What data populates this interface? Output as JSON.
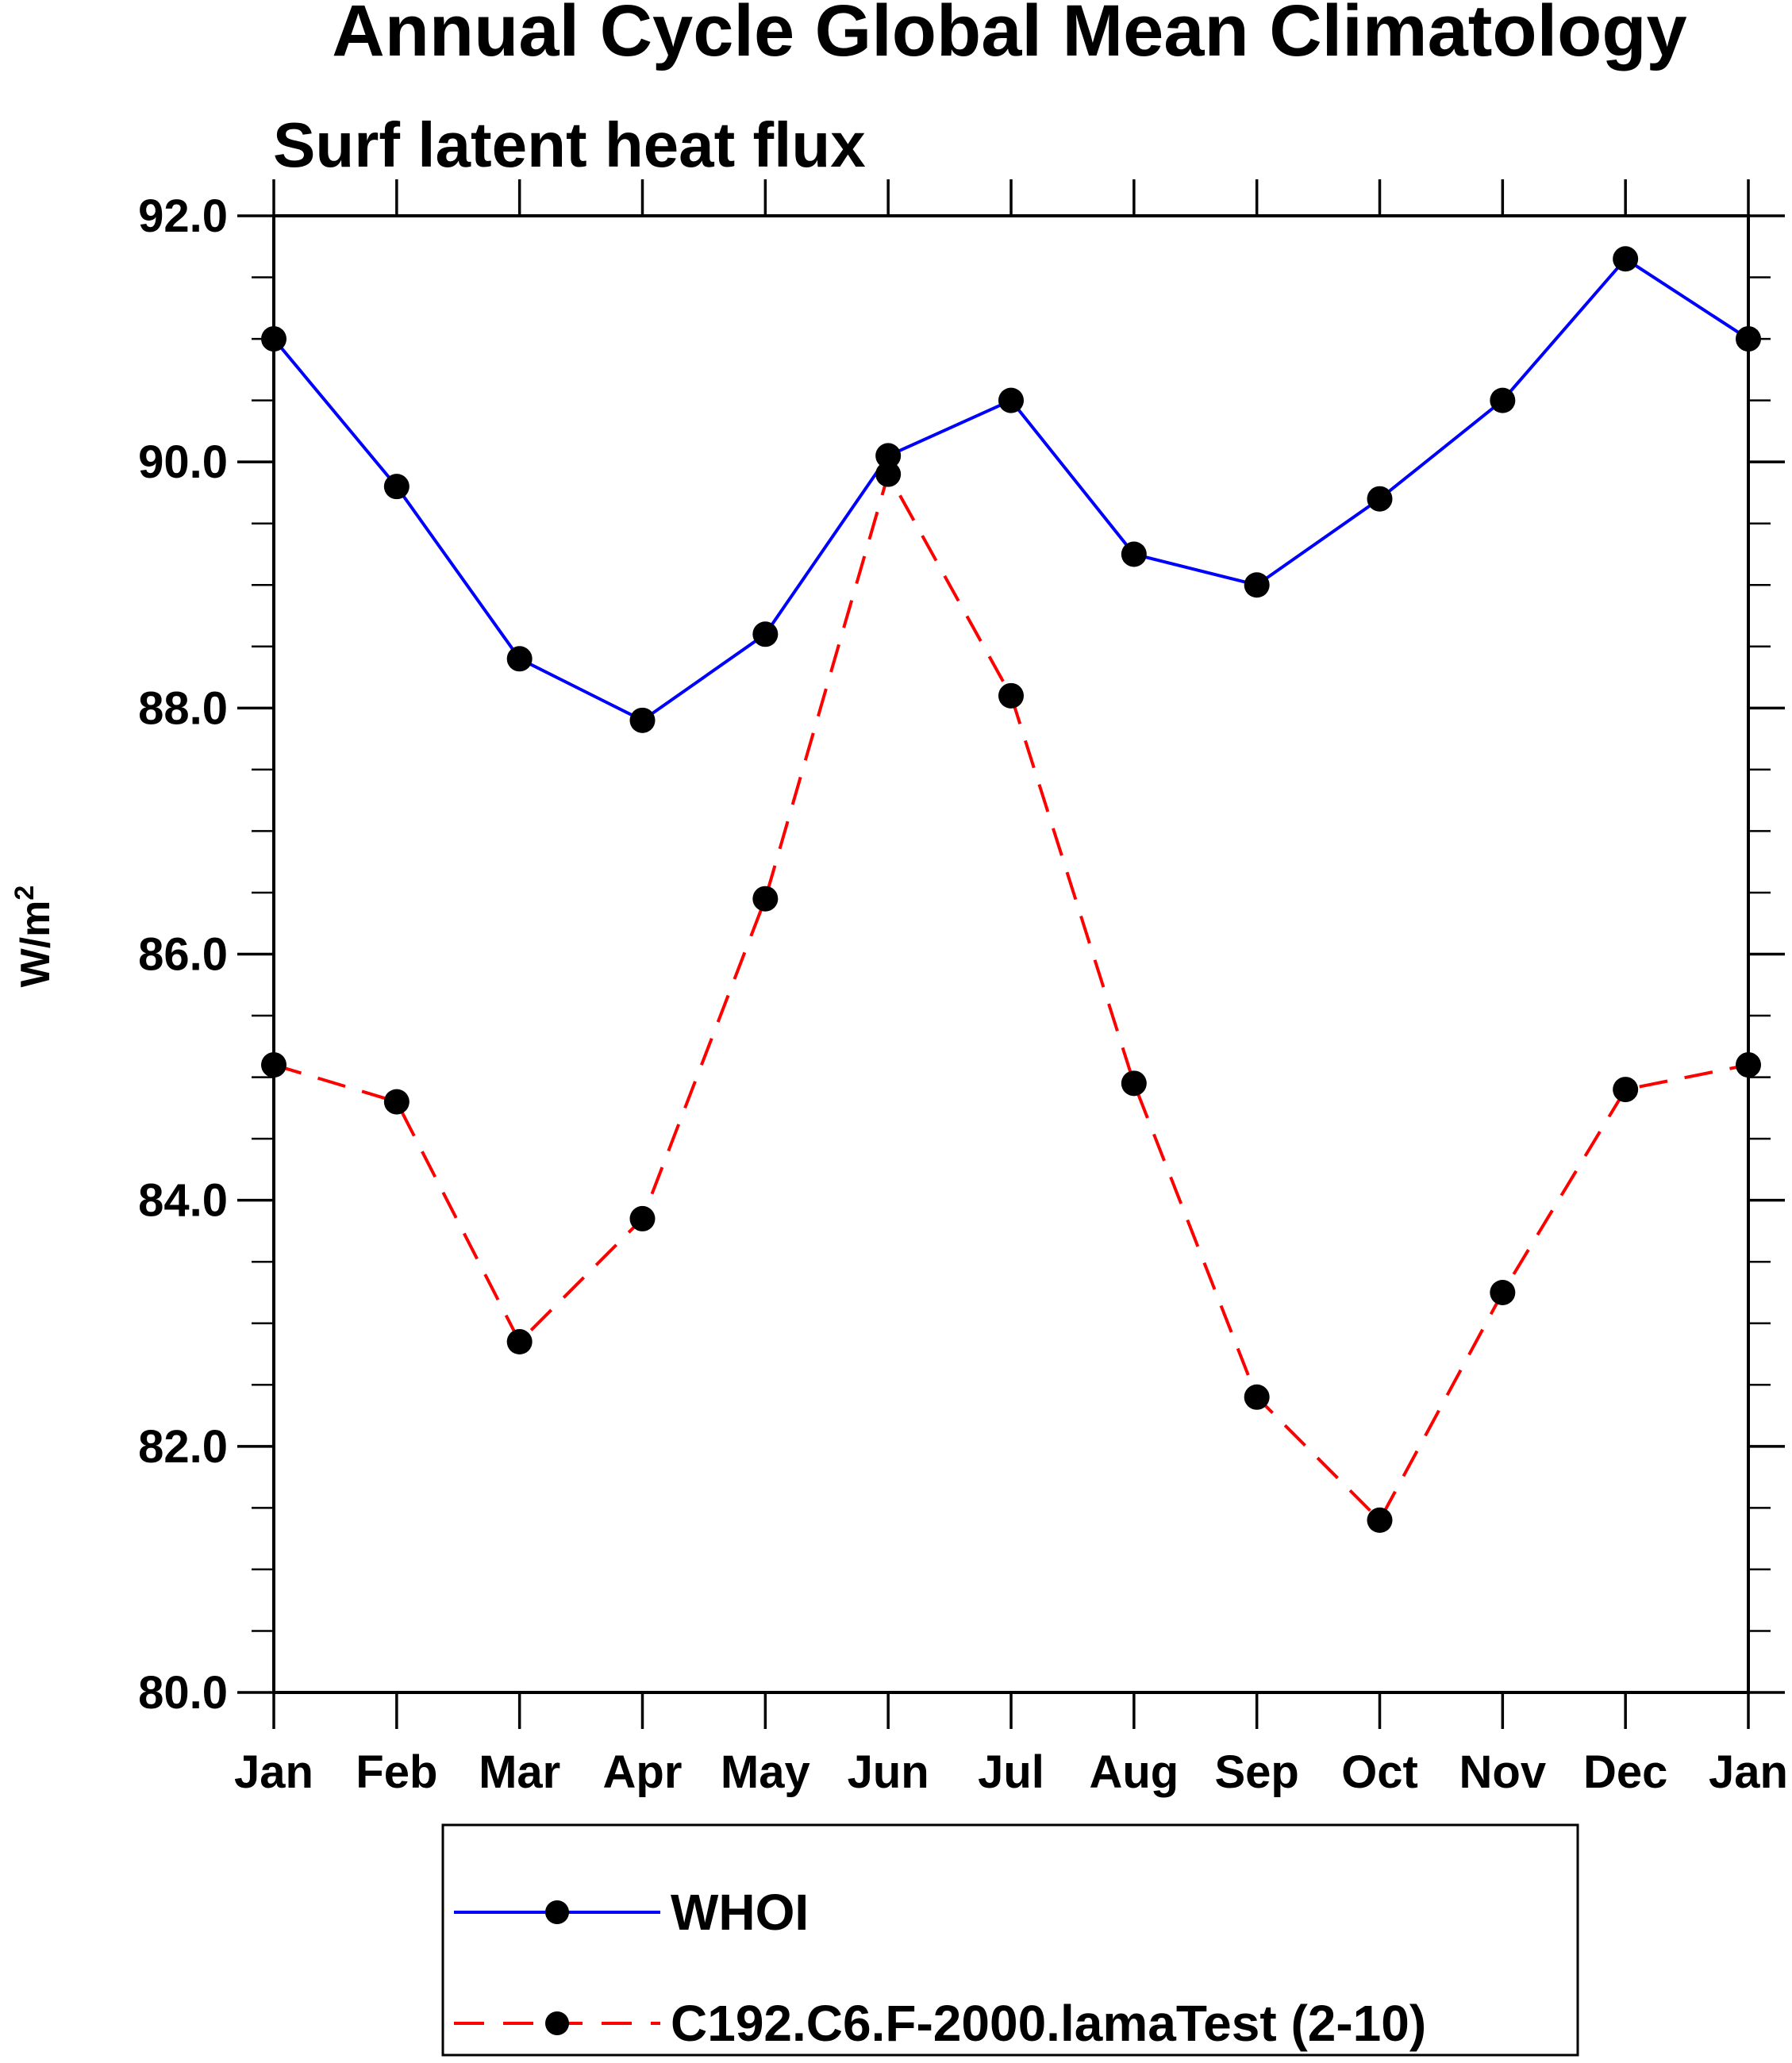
{
  "chart_data": {
    "type": "line",
    "title": "Annual Cycle Global Mean Climatology",
    "subtitle": "Surf latent heat flux",
    "xlabel": "",
    "ylabel": "W/m",
    "ylabel_superscript": "2",
    "categories": [
      "Jan",
      "Feb",
      "Mar",
      "Apr",
      "May",
      "Jun",
      "Jul",
      "Aug",
      "Sep",
      "Oct",
      "Nov",
      "Dec",
      "Jan"
    ],
    "ylim": [
      80.0,
      92.0
    ],
    "yticks": [
      "80.0",
      "82.0",
      "84.0",
      "86.0",
      "88.0",
      "90.0",
      "92.0"
    ],
    "grid": false,
    "legend_position": "bottom",
    "series": [
      {
        "name": "WHOI",
        "color": "#0000ff",
        "dash": "solid",
        "values": [
          91.0,
          89.8,
          88.4,
          87.9,
          88.6,
          90.05,
          90.5,
          89.25,
          89.0,
          89.7,
          90.5,
          91.65,
          91.0
        ]
      },
      {
        "name": "C192.C6.F-2000.lamaTest (2-10)",
        "color": "#ff0000",
        "dash": "dashed",
        "values": [
          85.1,
          84.8,
          82.85,
          83.85,
          86.45,
          89.9,
          88.1,
          84.95,
          82.4,
          81.4,
          83.25,
          84.9,
          85.1
        ]
      }
    ]
  }
}
